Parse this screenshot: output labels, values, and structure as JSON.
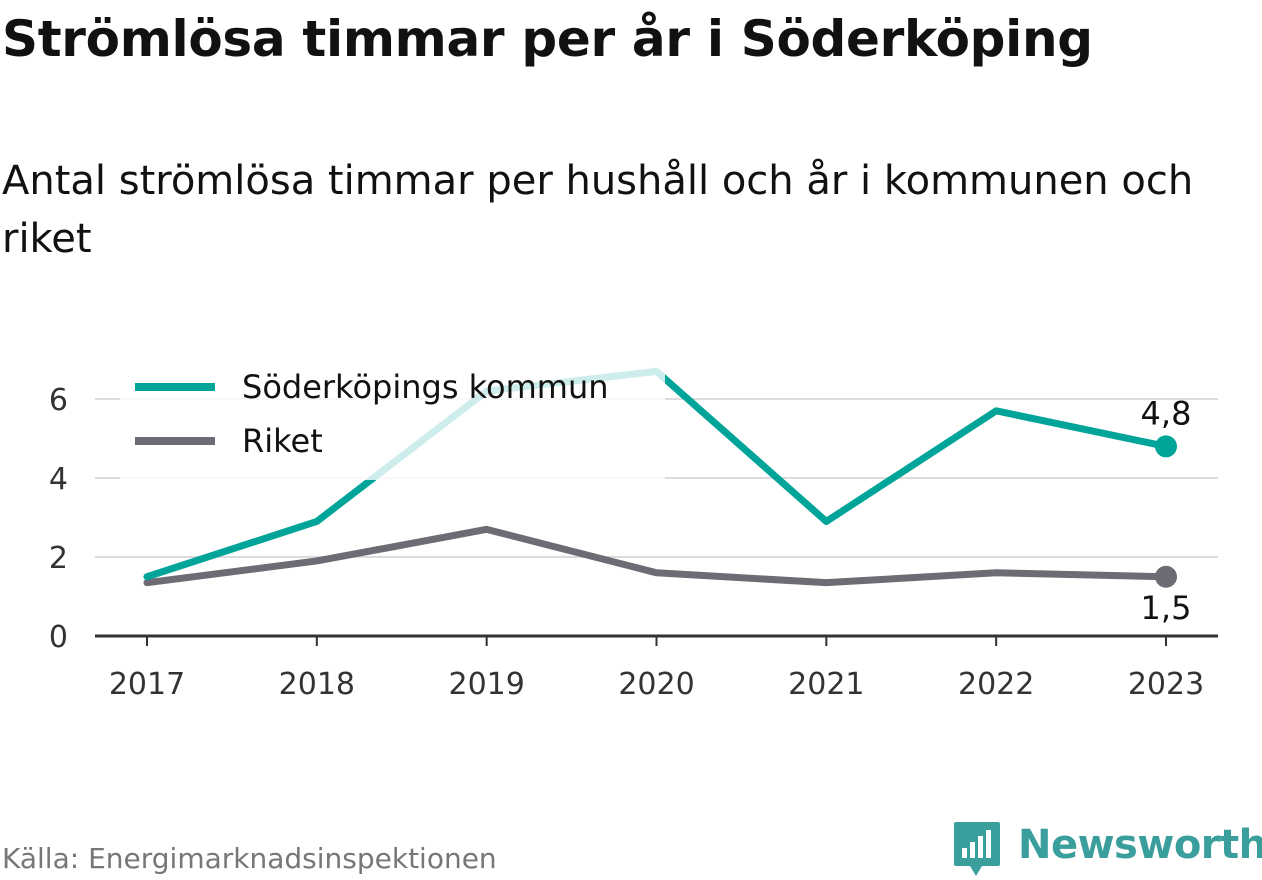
{
  "header": {
    "title": "Strömlösa timmar per år i Söderköping",
    "subtitle": "Antal strömlösa timmar per hushåll och år i kommunen och riket"
  },
  "footer": {
    "source": "Källa: Energimarknadsinspektionen",
    "brand": "Newsworthy",
    "brand_icon": "newsworthy-logo-icon",
    "brand_color": "#3a9e9c"
  },
  "chart_data": {
    "type": "line",
    "x": [
      "2017",
      "2018",
      "2019",
      "2020",
      "2021",
      "2022",
      "2023"
    ],
    "ylim": [
      0,
      7
    ],
    "yticks": [
      "0",
      "2",
      "4",
      "6"
    ],
    "grid": true,
    "legend_position": "top-left",
    "series": [
      {
        "name": "Söderköpings kommun",
        "color": "#00a499",
        "values": [
          1.5,
          2.9,
          6.2,
          6.7,
          2.9,
          5.7,
          4.8
        ],
        "end_label": "4,8",
        "end_label_position": "above"
      },
      {
        "name": "Riket",
        "color": "#6d6b73",
        "values": [
          1.35,
          1.9,
          2.7,
          1.6,
          1.35,
          1.6,
          1.5
        ],
        "end_label": "1,5",
        "end_label_position": "below"
      }
    ]
  }
}
